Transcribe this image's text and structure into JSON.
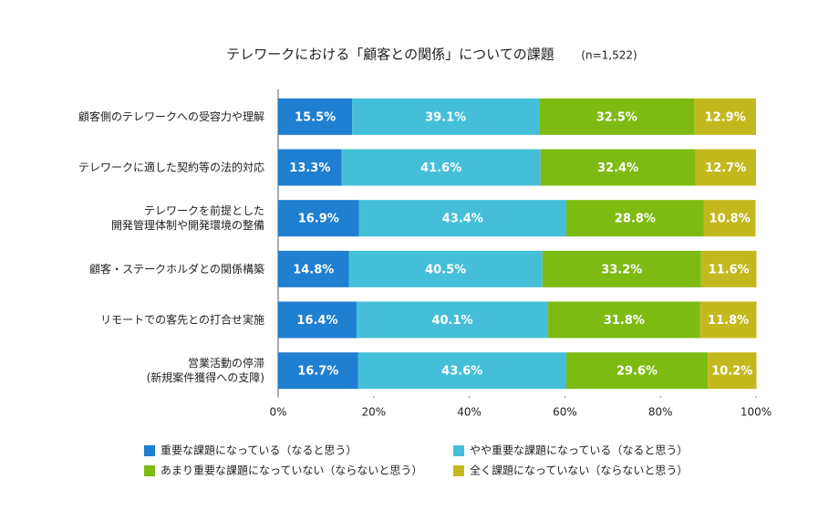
{
  "chart_data": {
    "type": "stacked_bar_horizontal",
    "title": "テレワークにおける「顧客との関係」についての課題",
    "subtitle": "(n=1,522)",
    "categories": [
      "顧客側のテレワークへの受容力や理解",
      "テレワークに適した契約等の法的対応",
      "テレワークを前提とした\n開発管理体制や開発環境の整備",
      "顧客・ステークホルダとの関係構築",
      "リモートでの客先との打合せ実施",
      "営業活動の停滞\n(新規案件獲得への支障)"
    ],
    "series": [
      {
        "name": "重要な課題になっている（なると思う）",
        "color": "#1f7fd0",
        "values": [
          15.5,
          13.3,
          16.9,
          14.8,
          16.4,
          16.7
        ],
        "value_labels": [
          "15.5%",
          "13.3%",
          "16.9%",
          "14.8%",
          "16.4%",
          "16.7%"
        ]
      },
      {
        "name": "やや重要な課題になっている（なると思う）",
        "color": "#45bfd9",
        "values": [
          39.1,
          41.6,
          43.4,
          40.5,
          40.1,
          43.6
        ],
        "value_labels": [
          "39.1%",
          "41.6%",
          "43.4%",
          "40.5%",
          "40.1%",
          "43.6%"
        ]
      },
      {
        "name": "あまり重要な課題になっていない（ならないと思う）",
        "color": "#7dbb12",
        "values": [
          32.5,
          32.4,
          28.8,
          33.2,
          31.8,
          29.6
        ],
        "value_labels": [
          "32.5%",
          "32.4%",
          "28.8%",
          "33.2%",
          "31.8%",
          "29.6%"
        ]
      },
      {
        "name": "全く課題になっていない（ならないと思う）",
        "color": "#c4b81f",
        "values": [
          12.9,
          12.7,
          10.8,
          11.6,
          11.8,
          10.2
        ],
        "value_labels": [
          "12.9%",
          "12.7%",
          "10.8%",
          "11.6%",
          "11.8%",
          "10.2%"
        ]
      }
    ],
    "xlim": [
      0,
      100
    ],
    "xticks": [
      {
        "value": 0,
        "label": "0%"
      },
      {
        "value": 20,
        "label": "20%"
      },
      {
        "value": 40,
        "label": "40%"
      },
      {
        "value": 60,
        "label": "60%"
      },
      {
        "value": 80,
        "label": "80%"
      },
      {
        "value": 100,
        "label": "100%"
      }
    ],
    "grid": false,
    "legend": "bottom"
  }
}
